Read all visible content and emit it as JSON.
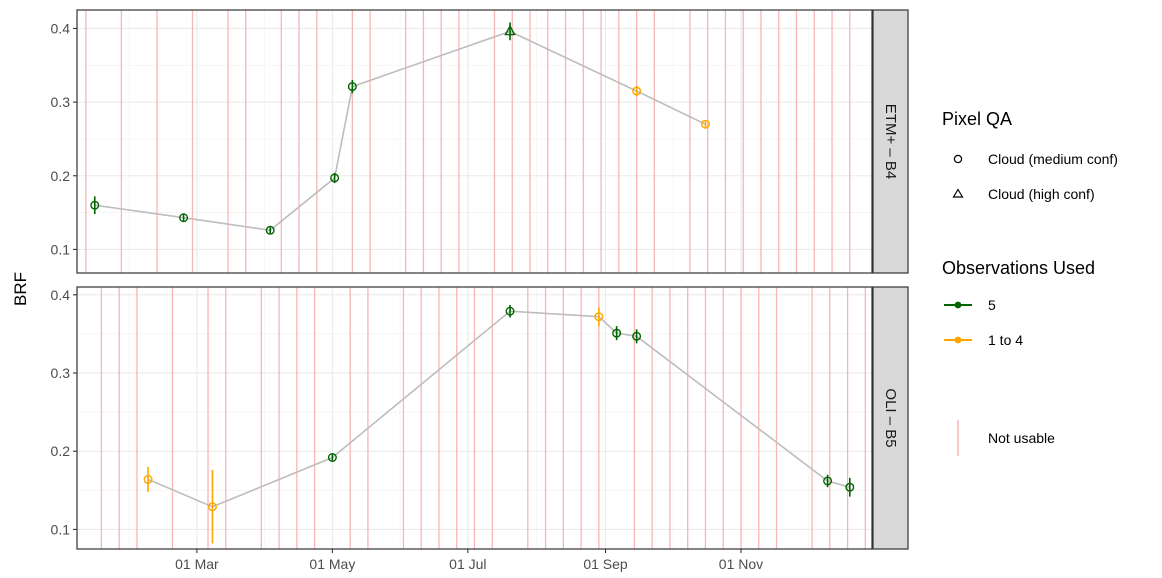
{
  "chart_data": {
    "type": "scatter",
    "ylabel": "BRF",
    "x_ticks": [
      "01 Mar",
      "01 May",
      "01 Jul",
      "01 Sep",
      "01 Nov"
    ],
    "x_tick_dates": [
      "2020-03-01",
      "2020-05-01",
      "2020-07-01",
      "2020-09-01",
      "2020-11-01"
    ],
    "x_range": [
      "2020-01-07",
      "2020-12-30"
    ],
    "legend": {
      "qa_title": "Pixel QA",
      "qa_items": [
        {
          "label": "Cloud (medium conf)",
          "shape": "circle"
        },
        {
          "label": "Cloud (high conf)",
          "shape": "triangle"
        }
      ],
      "obs_title": "Observations Used",
      "obs_items": [
        {
          "label": "5",
          "color": "#006400"
        },
        {
          "label": "1 to 4",
          "color": "#FFA500"
        }
      ],
      "unusable_label": "Not usable",
      "unusable_color": "#f7b6b6"
    },
    "panels": [
      {
        "strip": "ETM+ – B4",
        "y_ticks": [
          "0.1",
          "0.2",
          "0.3",
          "0.4"
        ],
        "ylim": [
          0.068,
          0.425
        ],
        "unusable_dates": [
          "2020-01-11",
          "2020-01-27",
          "2020-02-12",
          "2020-02-28",
          "2020-03-15",
          "2020-03-23",
          "2020-04-08",
          "2020-04-16",
          "2020-04-24",
          "2020-05-10",
          "2020-05-18",
          "2020-06-03",
          "2020-06-11",
          "2020-06-19",
          "2020-06-27",
          "2020-07-13",
          "2020-07-21",
          "2020-07-29",
          "2020-08-06",
          "2020-08-14",
          "2020-08-22",
          "2020-08-30",
          "2020-09-07",
          "2020-09-15",
          "2020-09-23",
          "2020-10-09",
          "2020-10-17",
          "2020-10-25",
          "2020-11-02",
          "2020-11-10",
          "2020-11-18",
          "2020-11-26",
          "2020-12-04",
          "2020-12-12",
          "2020-12-20"
        ],
        "points": [
          {
            "date": "2020-01-15",
            "y": 0.16,
            "err": 0.012,
            "shape": "circle",
            "obs": "5"
          },
          {
            "date": "2020-02-24",
            "y": 0.143,
            "err": 0.005,
            "shape": "circle",
            "obs": "5"
          },
          {
            "date": "2020-04-03",
            "y": 0.126,
            "err": 0.004,
            "shape": "circle",
            "obs": "5"
          },
          {
            "date": "2020-05-02",
            "y": 0.197,
            "err": 0.007,
            "shape": "circle",
            "obs": "5"
          },
          {
            "date": "2020-05-10",
            "y": 0.321,
            "err": 0.009,
            "shape": "circle",
            "obs": "5"
          },
          {
            "date": "2020-07-20",
            "y": 0.396,
            "err": 0.012,
            "shape": "triangle",
            "obs": "5"
          },
          {
            "date": "2020-09-15",
            "y": 0.315,
            "err": 0.007,
            "shape": "circle",
            "obs": "1 to 4"
          },
          {
            "date": "2020-10-16",
            "y": 0.27,
            "err": 0.004,
            "shape": "circle",
            "obs": "1 to 4"
          }
        ]
      },
      {
        "strip": "OLI – B5",
        "y_ticks": [
          "0.1",
          "0.2",
          "0.3",
          "0.4"
        ],
        "ylim": [
          0.075,
          0.41
        ],
        "unusable_dates": [
          "2020-01-18",
          "2020-01-26",
          "2020-02-03",
          "2020-02-19",
          "2020-03-06",
          "2020-03-14",
          "2020-03-30",
          "2020-04-07",
          "2020-04-15",
          "2020-04-23",
          "2020-05-09",
          "2020-05-17",
          "2020-06-02",
          "2020-06-10",
          "2020-06-18",
          "2020-06-26",
          "2020-07-04",
          "2020-07-12",
          "2020-07-28",
          "2020-08-05",
          "2020-08-13",
          "2020-08-21",
          "2020-08-29",
          "2020-09-14",
          "2020-09-22",
          "2020-09-30",
          "2020-10-08",
          "2020-10-16",
          "2020-10-24",
          "2020-11-01",
          "2020-11-09",
          "2020-11-17",
          "2020-12-03",
          "2020-12-11",
          "2020-12-19",
          "2020-12-27"
        ],
        "points": [
          {
            "date": "2020-02-08",
            "y": 0.164,
            "err": 0.016,
            "shape": "circle",
            "obs": "1 to 4"
          },
          {
            "date": "2020-03-08",
            "y": 0.129,
            "err": 0.047,
            "shape": "circle",
            "obs": "1 to 4"
          },
          {
            "date": "2020-05-01",
            "y": 0.192,
            "err": 0.005,
            "shape": "circle",
            "obs": "5"
          },
          {
            "date": "2020-07-20",
            "y": 0.379,
            "err": 0.008,
            "shape": "circle",
            "obs": "5"
          },
          {
            "date": "2020-08-29",
            "y": 0.372,
            "err": 0.012,
            "shape": "circle",
            "obs": "1 to 4"
          },
          {
            "date": "2020-09-06",
            "y": 0.351,
            "err": 0.009,
            "shape": "circle",
            "obs": "5"
          },
          {
            "date": "2020-09-15",
            "y": 0.347,
            "err": 0.009,
            "shape": "circle",
            "obs": "5"
          },
          {
            "date": "2020-12-10",
            "y": 0.162,
            "err": 0.008,
            "shape": "circle",
            "obs": "5"
          },
          {
            "date": "2020-12-20",
            "y": 0.154,
            "err": 0.012,
            "shape": "circle",
            "obs": "5"
          }
        ]
      }
    ]
  }
}
